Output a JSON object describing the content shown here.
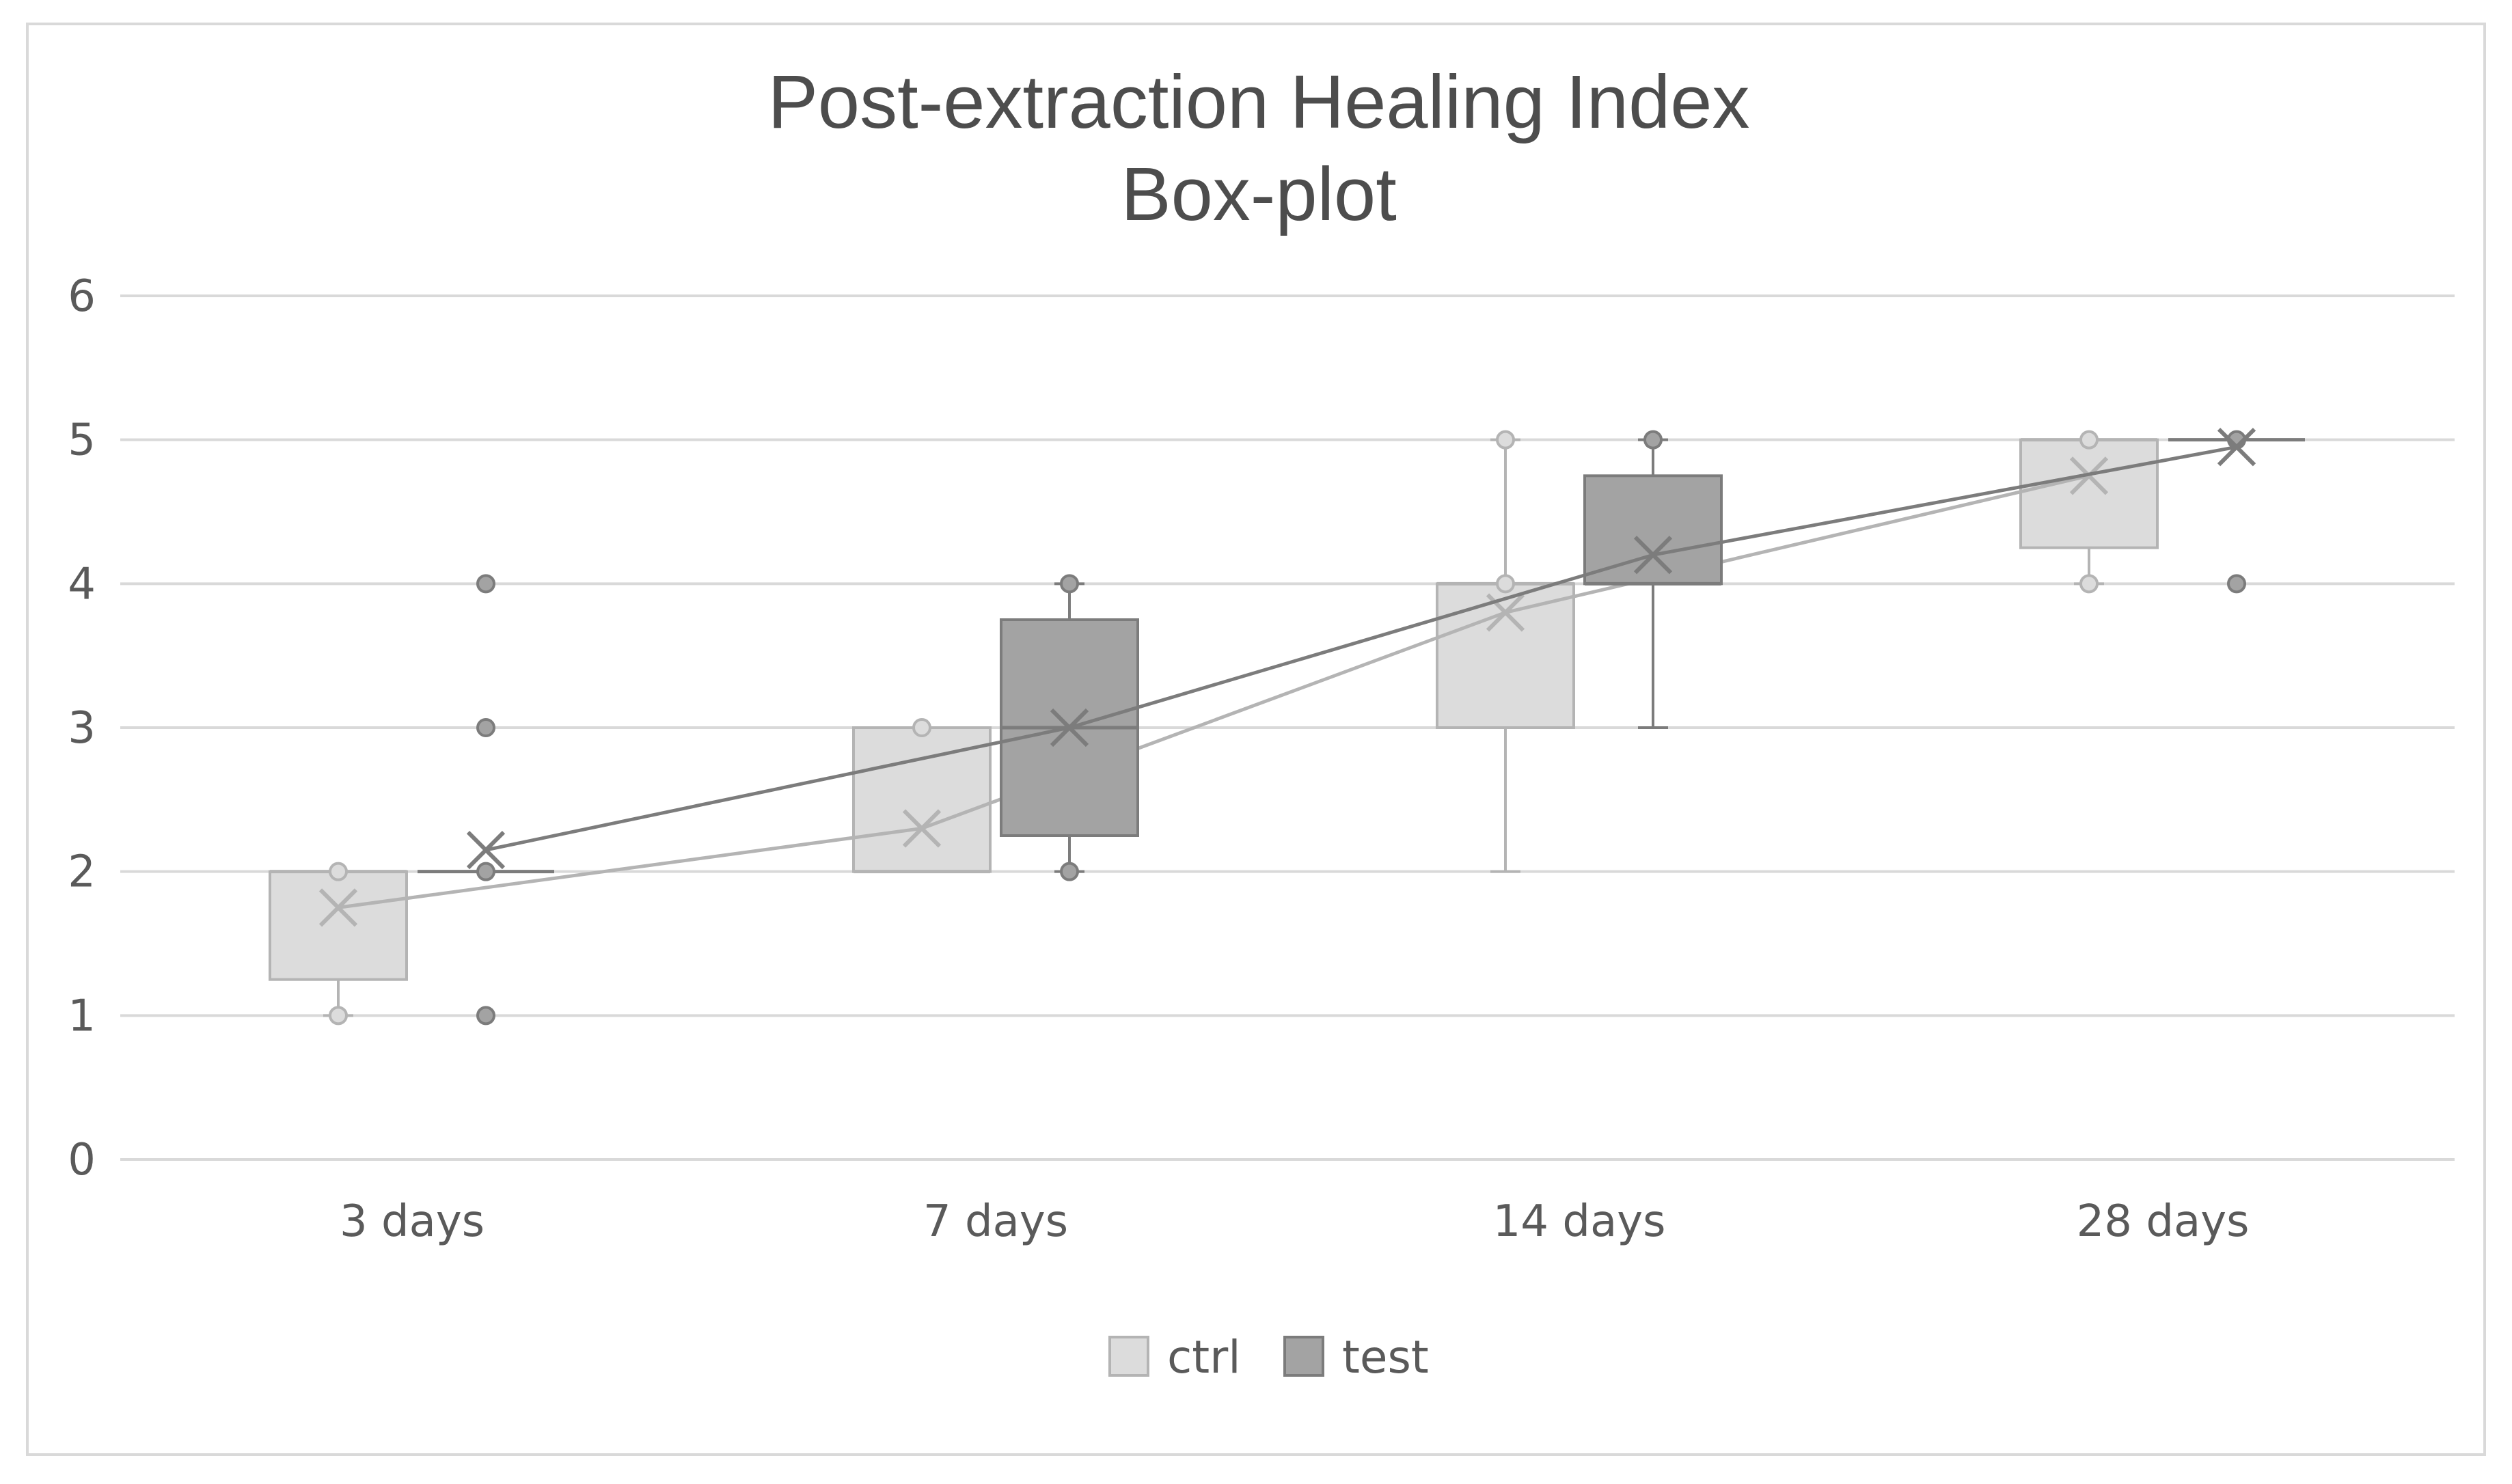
{
  "chart_data": {
    "type": "box",
    "title": [
      "Post-extraction Healing Index",
      "Box-plot"
    ],
    "xlabel": "",
    "ylabel": "",
    "ylim": [
      0,
      6
    ],
    "yticks": [
      "0",
      "1",
      "2",
      "3",
      "4",
      "5",
      "6"
    ],
    "categories": [
      "3 days",
      "7 days",
      "14 days",
      "28 days"
    ],
    "grid": true,
    "legend_position": "bottom",
    "series": [
      {
        "name": "ctrl",
        "color": "#dcdcdc",
        "edge": "#b4b4b4",
        "boxes": [
          {
            "min": 1,
            "q1": 1.25,
            "median": 2,
            "q3": 2,
            "max": 2,
            "mean": 1.75,
            "outliers": [
              1,
              2
            ]
          },
          {
            "min": 2,
            "q1": 2,
            "median": 2,
            "q3": 3,
            "max": 3,
            "mean": 2.3,
            "outliers": [
              3
            ]
          },
          {
            "min": 2,
            "q1": 3,
            "median": 4,
            "q3": 4,
            "max": 5,
            "mean": 3.8,
            "outliers": [
              4,
              5
            ]
          },
          {
            "min": 4,
            "q1": 4.25,
            "median": 5,
            "q3": 5,
            "max": 5,
            "mean": 4.75,
            "outliers": [
              4,
              5
            ]
          }
        ]
      },
      {
        "name": "test",
        "color": "#a3a3a3",
        "edge": "#7c7c7c",
        "boxes": [
          {
            "min": 2,
            "q1": 2,
            "median": 2,
            "q3": 2,
            "max": 2,
            "mean": 2.15,
            "outliers": [
              1,
              2,
              3,
              4
            ]
          },
          {
            "min": 2,
            "q1": 2.25,
            "median": 3,
            "q3": 3.75,
            "max": 4,
            "mean": 3,
            "outliers": [
              2,
              4
            ]
          },
          {
            "min": 3,
            "q1": 4,
            "median": 4,
            "q3": 4.75,
            "max": 5,
            "mean": 4.2,
            "outliers": [
              5
            ]
          },
          {
            "min": 5,
            "q1": 5,
            "median": 5,
            "q3": 5,
            "max": 5,
            "mean": 4.95,
            "outliers": [
              4,
              5
            ]
          }
        ]
      }
    ]
  }
}
